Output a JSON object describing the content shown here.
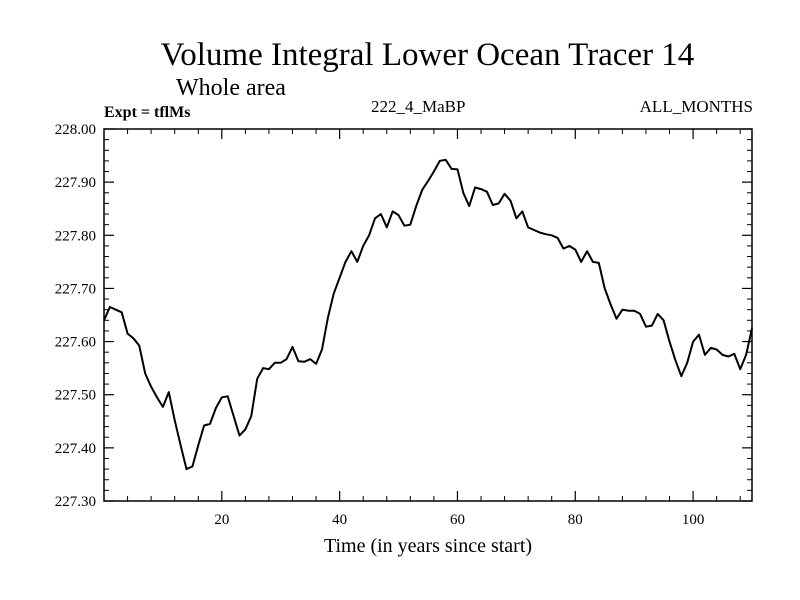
{
  "chart_data": {
    "type": "line",
    "title": "Volume Integral Lower Ocean Tracer 14",
    "subtitle": "Whole area",
    "experiment_label": "Expt = tflMs",
    "run_label": "222_4_MaBP",
    "period_label": "ALL_MONTHS",
    "xlabel": "Time (in years since start)",
    "ylabel": "",
    "xlim": [
      0,
      110
    ],
    "ylim": [
      227.3,
      228.0
    ],
    "x_ticks": [
      20,
      40,
      60,
      80,
      100
    ],
    "y_ticks": [
      "227.30",
      "227.40",
      "227.50",
      "227.60",
      "227.70",
      "227.80",
      "227.90",
      "228.00"
    ],
    "grid": false,
    "series": [
      {
        "name": "tracer14",
        "color": "#000000",
        "x": [
          0,
          1,
          2,
          3,
          4,
          5,
          6,
          7,
          8,
          9,
          10,
          11,
          12,
          13,
          14,
          15,
          16,
          17,
          18,
          19,
          20,
          21,
          22,
          23,
          24,
          25,
          26,
          27,
          28,
          29,
          30,
          31,
          32,
          33,
          34,
          35,
          36,
          37,
          38,
          39,
          40,
          41,
          42,
          43,
          44,
          45,
          46,
          47,
          48,
          49,
          50,
          51,
          52,
          53,
          54,
          55,
          56,
          57,
          58,
          59,
          60,
          61,
          62,
          63,
          64,
          65,
          66,
          67,
          68,
          69,
          70,
          71,
          72,
          73,
          74,
          75,
          76,
          77,
          78,
          79,
          80,
          81,
          82,
          83,
          84,
          85,
          86,
          87,
          88,
          89,
          90,
          91,
          92,
          93,
          94,
          95,
          96,
          97,
          98,
          99,
          100,
          101,
          102,
          103,
          104,
          105,
          106,
          107,
          108,
          109,
          110
        ],
        "y": [
          227.64,
          227.665,
          227.66,
          227.655,
          227.615,
          227.606,
          227.592,
          227.54,
          227.515,
          227.495,
          227.477,
          227.505,
          227.452,
          227.405,
          227.36,
          227.365,
          227.405,
          227.442,
          227.445,
          227.475,
          227.495,
          227.497,
          227.46,
          227.423,
          227.435,
          227.46,
          227.53,
          227.55,
          227.548,
          227.56,
          227.56,
          227.567,
          227.59,
          227.563,
          227.562,
          227.567,
          227.558,
          227.585,
          227.645,
          227.69,
          227.72,
          227.75,
          227.77,
          227.75,
          227.78,
          227.8,
          227.832,
          227.84,
          227.815,
          227.845,
          227.838,
          227.818,
          227.82,
          227.855,
          227.885,
          227.902,
          227.92,
          227.94,
          227.942,
          227.925,
          227.924,
          227.88,
          227.855,
          227.89,
          227.887,
          227.882,
          227.857,
          227.86,
          227.878,
          227.865,
          227.832,
          227.845,
          227.815,
          227.81,
          227.805,
          227.802,
          227.8,
          227.795,
          227.775,
          227.78,
          227.773,
          227.75,
          227.77,
          227.75,
          227.748,
          227.7,
          227.67,
          227.643,
          227.66,
          227.658,
          227.658,
          227.652,
          227.628,
          227.63,
          227.652,
          227.64,
          227.6,
          227.565,
          227.535,
          227.56,
          227.6,
          227.613,
          227.575,
          227.588,
          227.585,
          227.575,
          227.572,
          227.577,
          227.548,
          227.575,
          227.625
        ]
      }
    ]
  }
}
